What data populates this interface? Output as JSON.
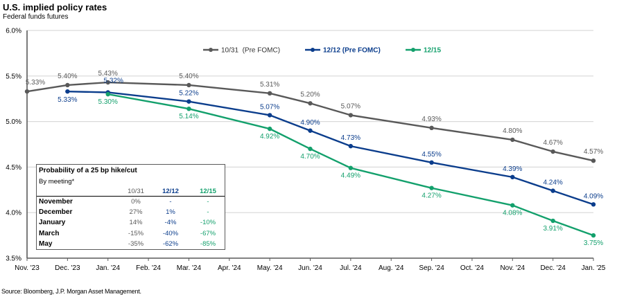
{
  "header": {
    "title": "U.S. implied policy rates",
    "subtitle": "Federal funds futures"
  },
  "source": "Source: Bloomberg, J.P. Morgan Asset Management.",
  "colors": {
    "series_1031": "#595959",
    "series_1212": "#0B3D8C",
    "series_1215": "#13A06C",
    "grid": "#D9D9D9",
    "axis": "#595959"
  },
  "chart_data": {
    "type": "line",
    "title": "U.S. implied policy rates",
    "subtitle": "Federal funds futures",
    "xlabel": "",
    "ylabel": "",
    "x": [
      "Nov. '23",
      "Dec. '23",
      "Jan. '24",
      "Feb. '24",
      "Mar. '24",
      "Apr. '24",
      "May. '24",
      "Jun. '24",
      "Jul. '24",
      "Aug. '24",
      "Sep. '24",
      "Oct. '24",
      "Nov. '24",
      "Dec. '24",
      "Jan. '25"
    ],
    "ylim": [
      3.5,
      6.0
    ],
    "yticks": [
      3.5,
      4.0,
      4.5,
      5.0,
      5.5,
      6.0
    ],
    "ytick_labels": [
      "3.5%",
      "4.0%",
      "4.5%",
      "5.0%",
      "5.5%",
      "6.0%"
    ],
    "grid": "horizontal",
    "legend_position": "top-center",
    "series": [
      {
        "name": "10/31  (Pre FOMC)",
        "color": "#595959",
        "points": [
          {
            "x": "Nov. '23",
            "y": 5.33,
            "label": "5.33%"
          },
          {
            "x": "Dec. '23",
            "y": 5.4,
            "label": "5.40%"
          },
          {
            "x": "Jan. '24",
            "y": 5.43,
            "label": "5.43%"
          },
          {
            "x": "Mar. '24",
            "y": 5.4,
            "label": "5.40%"
          },
          {
            "x": "May. '24",
            "y": 5.31,
            "label": "5.31%"
          },
          {
            "x": "Jun. '24",
            "y": 5.2,
            "label": "5.20%"
          },
          {
            "x": "Jul. '24",
            "y": 5.07,
            "label": "5.07%"
          },
          {
            "x": "Sep. '24",
            "y": 4.93,
            "label": "4.93%"
          },
          {
            "x": "Nov. '24",
            "y": 4.8,
            "label": "4.80%"
          },
          {
            "x": "Dec. '24",
            "y": 4.67,
            "label": "4.67%"
          },
          {
            "x": "Jan. '25",
            "y": 4.57,
            "label": "4.57%"
          }
        ]
      },
      {
        "name": "12/12 (Pre FOMC)",
        "color": "#0B3D8C",
        "points": [
          {
            "x": "Dec. '23",
            "y": 5.33,
            "label": "5.33%"
          },
          {
            "x": "Jan. '24",
            "y": 5.32,
            "label": "5.32%"
          },
          {
            "x": "Mar. '24",
            "y": 5.22,
            "label": "5.22%"
          },
          {
            "x": "May. '24",
            "y": 5.07,
            "label": "5.07%"
          },
          {
            "x": "Jun. '24",
            "y": 4.9,
            "label": "4.90%"
          },
          {
            "x": "Jul. '24",
            "y": 4.73,
            "label": "4.73%"
          },
          {
            "x": "Sep. '24",
            "y": 4.55,
            "label": "4.55%"
          },
          {
            "x": "Nov. '24",
            "y": 4.39,
            "label": "4.39%"
          },
          {
            "x": "Dec. '24",
            "y": 4.24,
            "label": "4.24%"
          },
          {
            "x": "Jan. '25",
            "y": 4.09,
            "label": "4.09%"
          }
        ]
      },
      {
        "name": "12/15",
        "color": "#13A06C",
        "points": [
          {
            "x": "Jan. '24",
            "y": 5.3,
            "label": "5.30%"
          },
          {
            "x": "Mar. '24",
            "y": 5.14,
            "label": "5.14%"
          },
          {
            "x": "May. '24",
            "y": 4.92,
            "label": "4.92%"
          },
          {
            "x": "Jun. '24",
            "y": 4.7,
            "label": "4.70%"
          },
          {
            "x": "Jul. '24",
            "y": 4.49,
            "label": "4.49%"
          },
          {
            "x": "Sep. '24",
            "y": 4.27,
            "label": "4.27%"
          },
          {
            "x": "Nov. '24",
            "y": 4.08,
            "label": "4.08%"
          },
          {
            "x": "Dec. '24",
            "y": 3.91,
            "label": "3.91%"
          },
          {
            "x": "Jan. '25",
            "y": 3.75,
            "label": "3.75%"
          }
        ]
      }
    ]
  },
  "inset_table": {
    "title": "Probability of a 25 bp hike/cut",
    "subtitle": "By meeting*",
    "columns": [
      "10/31",
      "12/12",
      "12/15"
    ],
    "rows": [
      {
        "meeting": "November",
        "values": [
          "0%",
          "-",
          "-"
        ]
      },
      {
        "meeting": "December",
        "values": [
          "27%",
          "1%",
          "-"
        ]
      },
      {
        "meeting": "January",
        "values": [
          "14%",
          "-4%",
          "-10%"
        ]
      },
      {
        "meeting": "March",
        "values": [
          "-15%",
          "-40%",
          "-67%"
        ]
      },
      {
        "meeting": "May",
        "values": [
          "-35%",
          "-62%",
          "-85%"
        ]
      }
    ]
  }
}
